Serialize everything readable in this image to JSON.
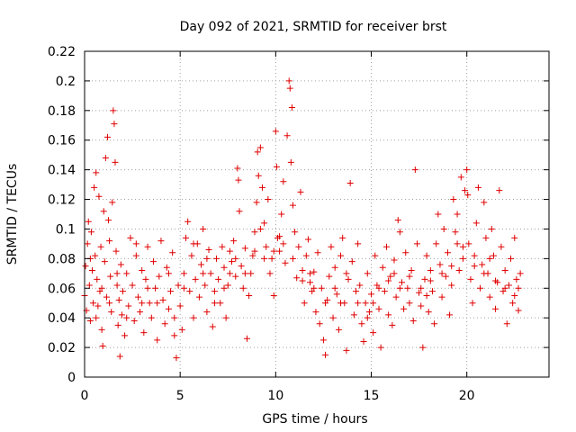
{
  "chart_data": {
    "type": "scatter",
    "title": "Day 092 of 2021, SRMTID for receiver brst",
    "xlabel": "GPS time / hours",
    "ylabel": "SRMTID / TECUs",
    "xlim": [
      0,
      24.3
    ],
    "ylim": [
      0,
      0.22
    ],
    "x_ticks": [
      0,
      5,
      10,
      15,
      20
    ],
    "x_tick_labels": [
      "0",
      "5",
      "10",
      "15",
      "20"
    ],
    "y_ticks": [
      0,
      0.02,
      0.04,
      0.06,
      0.08,
      0.1,
      0.12,
      0.14,
      0.16,
      0.18,
      0.2,
      0.22
    ],
    "y_tick_labels": [
      "0",
      "0.02",
      "0.04",
      "0.06",
      "0.08",
      "0.1",
      "0.12",
      "0.14",
      "0.16",
      "0.18",
      "0.2",
      "0.22"
    ],
    "grid": true,
    "marker": "plus",
    "color": "#e00000",
    "series": [
      {
        "name": "SRMTID",
        "points": [
          [
            0.0,
            0.055
          ],
          [
            0.05,
            0.075
          ],
          [
            0.1,
            0.045
          ],
          [
            0.15,
            0.09
          ],
          [
            0.2,
            0.105
          ],
          [
            0.25,
            0.062
          ],
          [
            0.3,
            0.038
          ],
          [
            0.35,
            0.098
          ],
          [
            0.4,
            0.072
          ],
          [
            0.45,
            0.05
          ],
          [
            0.5,
            0.128
          ],
          [
            0.55,
            0.082
          ],
          [
            0.6,
            0.138
          ],
          [
            0.65,
            0.066
          ],
          [
            0.7,
            0.048
          ],
          [
            0.75,
            0.122
          ],
          [
            0.8,
            0.058
          ],
          [
            0.85,
            0.088
          ],
          [
            0.9,
            0.032
          ],
          [
            0.95,
            0.021
          ],
          [
            1.0,
            0.112
          ],
          [
            1.05,
            0.078
          ],
          [
            1.1,
            0.148
          ],
          [
            1.15,
            0.054
          ],
          [
            1.2,
            0.162
          ],
          [
            1.25,
            0.106
          ],
          [
            1.3,
            0.092
          ],
          [
            1.35,
            0.068
          ],
          [
            1.4,
            0.044
          ],
          [
            1.45,
            0.118
          ],
          [
            1.5,
            0.18
          ],
          [
            1.55,
            0.171
          ],
          [
            1.6,
            0.145
          ],
          [
            1.65,
            0.085
          ],
          [
            1.7,
            0.062
          ],
          [
            1.75,
            0.035
          ],
          [
            1.8,
            0.052
          ],
          [
            1.85,
            0.014
          ],
          [
            1.9,
            0.076
          ],
          [
            1.95,
            0.042
          ],
          [
            2.0,
            0.058
          ],
          [
            2.1,
            0.028
          ],
          [
            2.2,
            0.07
          ],
          [
            2.3,
            0.048
          ],
          [
            2.4,
            0.094
          ],
          [
            2.5,
            0.062
          ],
          [
            2.6,
            0.038
          ],
          [
            2.7,
            0.082
          ],
          [
            2.8,
            0.054
          ],
          [
            2.9,
            0.044
          ],
          [
            3.0,
            0.072
          ],
          [
            3.1,
            0.03
          ],
          [
            3.2,
            0.066
          ],
          [
            3.3,
            0.088
          ],
          [
            3.4,
            0.05
          ],
          [
            3.5,
            0.04
          ],
          [
            3.6,
            0.078
          ],
          [
            3.7,
            0.06
          ],
          [
            3.8,
            0.025
          ],
          [
            3.9,
            0.068
          ],
          [
            4.0,
            0.092
          ],
          [
            4.1,
            0.052
          ],
          [
            4.2,
            0.036
          ],
          [
            4.3,
            0.074
          ],
          [
            4.4,
            0.046
          ],
          [
            4.5,
            0.058
          ],
          [
            4.6,
            0.084
          ],
          [
            4.7,
            0.028
          ],
          [
            4.8,
            0.013
          ],
          [
            4.9,
            0.062
          ],
          [
            5.0,
            0.048
          ],
          [
            5.1,
            0.032
          ],
          [
            5.2,
            0.07
          ],
          [
            5.3,
            0.094
          ],
          [
            5.4,
            0.105
          ],
          [
            5.5,
            0.058
          ],
          [
            5.6,
            0.082
          ],
          [
            5.7,
            0.04
          ],
          [
            5.8,
            0.066
          ],
          [
            5.9,
            0.09
          ],
          [
            6.0,
            0.054
          ],
          [
            6.1,
            0.076
          ],
          [
            6.2,
            0.1
          ],
          [
            6.3,
            0.062
          ],
          [
            6.4,
            0.044
          ],
          [
            6.5,
            0.086
          ],
          [
            6.6,
            0.07
          ],
          [
            6.7,
            0.034
          ],
          [
            6.8,
            0.058
          ],
          [
            6.9,
            0.08
          ],
          [
            7.0,
            0.066
          ],
          [
            7.1,
            0.05
          ],
          [
            7.2,
            0.088
          ],
          [
            7.3,
            0.074
          ],
          [
            7.4,
            0.04
          ],
          [
            7.5,
            0.062
          ],
          [
            7.6,
            0.085
          ],
          [
            7.7,
            0.078
          ],
          [
            7.8,
            0.092
          ],
          [
            7.9,
            0.068
          ],
          [
            8.0,
            0.141
          ],
          [
            8.05,
            0.133
          ],
          [
            8.1,
            0.112
          ],
          [
            8.2,
            0.075
          ],
          [
            8.3,
            0.06
          ],
          [
            8.4,
            0.087
          ],
          [
            8.5,
            0.026
          ],
          [
            8.6,
            0.055
          ],
          [
            8.7,
            0.07
          ],
          [
            8.8,
            0.082
          ],
          [
            8.9,
            0.098
          ],
          [
            9.0,
            0.118
          ],
          [
            9.05,
            0.152
          ],
          [
            9.1,
            0.136
          ],
          [
            9.2,
            0.155
          ],
          [
            9.3,
            0.128
          ],
          [
            9.4,
            0.104
          ],
          [
            9.5,
            0.088
          ],
          [
            9.6,
            0.12
          ],
          [
            9.7,
            0.07
          ],
          [
            9.8,
            0.08
          ],
          [
            9.9,
            0.055
          ],
          [
            10.0,
            0.166
          ],
          [
            10.05,
            0.142
          ],
          [
            10.1,
            0.094
          ],
          [
            10.2,
            0.085
          ],
          [
            10.3,
            0.11
          ],
          [
            10.4,
            0.132
          ],
          [
            10.5,
            0.077
          ],
          [
            10.6,
            0.163
          ],
          [
            10.7,
            0.2
          ],
          [
            10.75,
            0.195
          ],
          [
            10.8,
            0.145
          ],
          [
            10.85,
            0.182
          ],
          [
            10.9,
            0.116
          ],
          [
            11.0,
            0.098
          ],
          [
            11.1,
            0.067
          ],
          [
            11.2,
            0.088
          ],
          [
            11.3,
            0.125
          ],
          [
            11.4,
            0.072
          ],
          [
            11.5,
            0.05
          ],
          [
            11.6,
            0.082
          ],
          [
            11.7,
            0.093
          ],
          [
            11.8,
            0.064
          ],
          [
            11.9,
            0.058
          ],
          [
            12.0,
            0.071
          ],
          [
            12.1,
            0.044
          ],
          [
            12.2,
            0.084
          ],
          [
            12.3,
            0.036
          ],
          [
            12.4,
            0.06
          ],
          [
            12.5,
            0.025
          ],
          [
            12.6,
            0.015
          ],
          [
            12.7,
            0.052
          ],
          [
            12.8,
            0.068
          ],
          [
            12.9,
            0.088
          ],
          [
            13.0,
            0.04
          ],
          [
            13.1,
            0.074
          ],
          [
            13.2,
            0.056
          ],
          [
            13.3,
            0.032
          ],
          [
            13.4,
            0.082
          ],
          [
            13.5,
            0.094
          ],
          [
            13.6,
            0.05
          ],
          [
            13.7,
            0.018
          ],
          [
            13.8,
            0.066
          ],
          [
            13.9,
            0.131
          ],
          [
            14.0,
            0.078
          ],
          [
            14.1,
            0.042
          ],
          [
            14.2,
            0.058
          ],
          [
            14.3,
            0.09
          ],
          [
            14.4,
            0.062
          ],
          [
            14.5,
            0.036
          ],
          [
            14.6,
            0.024
          ],
          [
            14.7,
            0.05
          ],
          [
            14.8,
            0.07
          ],
          [
            14.9,
            0.044
          ],
          [
            15.0,
            0.056
          ],
          [
            15.1,
            0.03
          ],
          [
            15.2,
            0.082
          ],
          [
            15.3,
            0.062
          ],
          [
            15.4,
            0.046
          ],
          [
            15.5,
            0.02
          ],
          [
            15.6,
            0.074
          ],
          [
            15.7,
            0.058
          ],
          [
            15.8,
            0.088
          ],
          [
            15.9,
            0.042
          ],
          [
            16.0,
            0.068
          ],
          [
            16.1,
            0.035
          ],
          [
            16.2,
            0.079
          ],
          [
            16.3,
            0.054
          ],
          [
            16.4,
            0.106
          ],
          [
            16.5,
            0.098
          ],
          [
            16.6,
            0.064
          ],
          [
            16.7,
            0.046
          ],
          [
            16.8,
            0.084
          ],
          [
            16.9,
            0.06
          ],
          [
            17.0,
            0.05
          ],
          [
            17.1,
            0.072
          ],
          [
            17.2,
            0.038
          ],
          [
            17.3,
            0.14
          ],
          [
            17.4,
            0.09
          ],
          [
            17.5,
            0.057
          ],
          [
            17.6,
            0.048
          ],
          [
            17.7,
            0.02
          ],
          [
            17.8,
            0.066
          ],
          [
            17.9,
            0.082
          ],
          [
            18.0,
            0.044
          ],
          [
            18.1,
            0.072
          ],
          [
            18.2,
            0.058
          ],
          [
            18.3,
            0.036
          ],
          [
            18.4,
            0.09
          ],
          [
            18.5,
            0.11
          ],
          [
            18.6,
            0.076
          ],
          [
            18.7,
            0.054
          ],
          [
            18.8,
            0.1
          ],
          [
            18.9,
            0.068
          ],
          [
            19.0,
            0.084
          ],
          [
            19.1,
            0.042
          ],
          [
            19.2,
            0.062
          ],
          [
            19.3,
            0.12
          ],
          [
            19.4,
            0.098
          ],
          [
            19.5,
            0.11
          ],
          [
            19.6,
            0.072
          ],
          [
            19.7,
            0.135
          ],
          [
            19.8,
            0.088
          ],
          [
            19.9,
            0.126
          ],
          [
            20.0,
            0.14
          ],
          [
            20.05,
            0.123
          ],
          [
            20.1,
            0.09
          ],
          [
            20.2,
            0.066
          ],
          [
            20.3,
            0.05
          ],
          [
            20.4,
            0.082
          ],
          [
            20.5,
            0.104
          ],
          [
            20.6,
            0.128
          ],
          [
            20.7,
            0.06
          ],
          [
            20.8,
            0.076
          ],
          [
            20.9,
            0.118
          ],
          [
            21.0,
            0.094
          ],
          [
            21.1,
            0.07
          ],
          [
            21.2,
            0.054
          ],
          [
            21.3,
            0.1
          ],
          [
            21.4,
            0.082
          ],
          [
            21.5,
            0.046
          ],
          [
            21.6,
            0.064
          ],
          [
            21.7,
            0.126
          ],
          [
            21.8,
            0.088
          ],
          [
            21.9,
            0.058
          ],
          [
            22.0,
            0.072
          ],
          [
            22.1,
            0.036
          ],
          [
            22.2,
            0.062
          ],
          [
            22.3,
            0.08
          ],
          [
            22.4,
            0.05
          ],
          [
            22.5,
            0.094
          ],
          [
            22.6,
            0.066
          ],
          [
            22.7,
            0.045
          ],
          [
            22.8,
            0.07
          ],
          [
            0.3,
            0.08
          ],
          [
            0.9,
            0.06
          ],
          [
            1.3,
            0.05
          ],
          [
            2.2,
            0.04
          ],
          [
            2.7,
            0.09
          ],
          [
            3.3,
            0.06
          ],
          [
            3.8,
            0.05
          ],
          [
            4.4,
            0.07
          ],
          [
            5.2,
            0.06
          ],
          [
            5.7,
            0.09
          ],
          [
            6.2,
            0.07
          ],
          [
            6.8,
            0.05
          ],
          [
            7.3,
            0.06
          ],
          [
            7.9,
            0.08
          ],
          [
            8.4,
            0.07
          ],
          [
            8.9,
            0.085
          ],
          [
            9.4,
            0.08
          ],
          [
            9.9,
            0.085
          ],
          [
            10.4,
            0.09
          ],
          [
            10.9,
            0.08
          ],
          [
            11.4,
            0.065
          ],
          [
            12.0,
            0.06
          ],
          [
            12.6,
            0.05
          ],
          [
            13.1,
            0.06
          ],
          [
            13.7,
            0.07
          ],
          [
            14.3,
            0.05
          ],
          [
            14.8,
            0.04
          ],
          [
            15.4,
            0.06
          ],
          [
            15.9,
            0.065
          ],
          [
            16.5,
            0.06
          ],
          [
            17.0,
            0.068
          ],
          [
            17.6,
            0.06
          ],
          [
            18.1,
            0.065
          ],
          [
            18.7,
            0.07
          ],
          [
            19.2,
            0.075
          ],
          [
            19.8,
            0.08
          ],
          [
            20.4,
            0.075
          ],
          [
            20.9,
            0.07
          ],
          [
            21.5,
            0.065
          ],
          [
            22.0,
            0.06
          ],
          [
            22.5,
            0.055
          ],
          [
            0.6,
            0.04
          ],
          [
            1.7,
            0.07
          ],
          [
            3.0,
            0.05
          ],
          [
            4.7,
            0.04
          ],
          [
            6.4,
            0.08
          ],
          [
            7.6,
            0.07
          ],
          [
            9.2,
            0.1
          ],
          [
            10.2,
            0.095
          ],
          [
            11.8,
            0.07
          ],
          [
            13.4,
            0.05
          ],
          [
            15.1,
            0.05
          ],
          [
            16.2,
            0.07
          ],
          [
            17.9,
            0.055
          ],
          [
            19.5,
            0.09
          ],
          [
            21.2,
            0.08
          ],
          [
            22.7,
            0.06
          ]
        ]
      }
    ]
  }
}
